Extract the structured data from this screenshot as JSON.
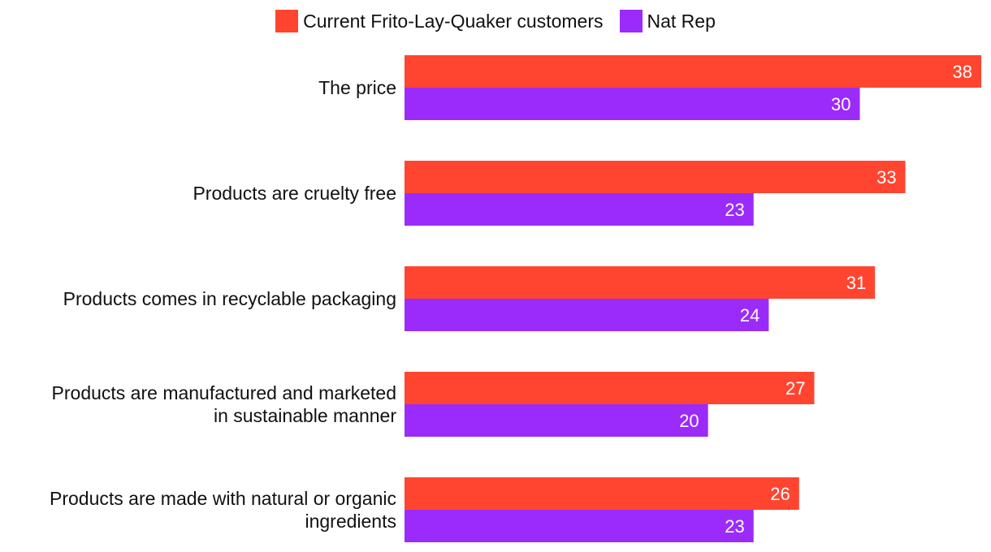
{
  "chart_data": {
    "type": "bar",
    "orientation": "horizontal",
    "categories": [
      [
        "The price"
      ],
      [
        "Products are cruelty free"
      ],
      [
        "Products comes in recyclable packaging"
      ],
      [
        "Products are manufactured and marketed",
        "in sustainable manner"
      ],
      [
        "Products are made with natural or organic",
        "ingredients"
      ]
    ],
    "series": [
      {
        "name": "Current Frito-Lay-Quaker customers",
        "color": "#ff4530",
        "values": [
          38,
          33,
          31,
          27,
          26
        ]
      },
      {
        "name": "Nat Rep",
        "color": "#9b2bfa",
        "values": [
          30,
          23,
          24,
          20,
          23
        ]
      }
    ],
    "xlim": [
      0,
      38
    ],
    "legend_position": "top-center",
    "grid": false
  }
}
